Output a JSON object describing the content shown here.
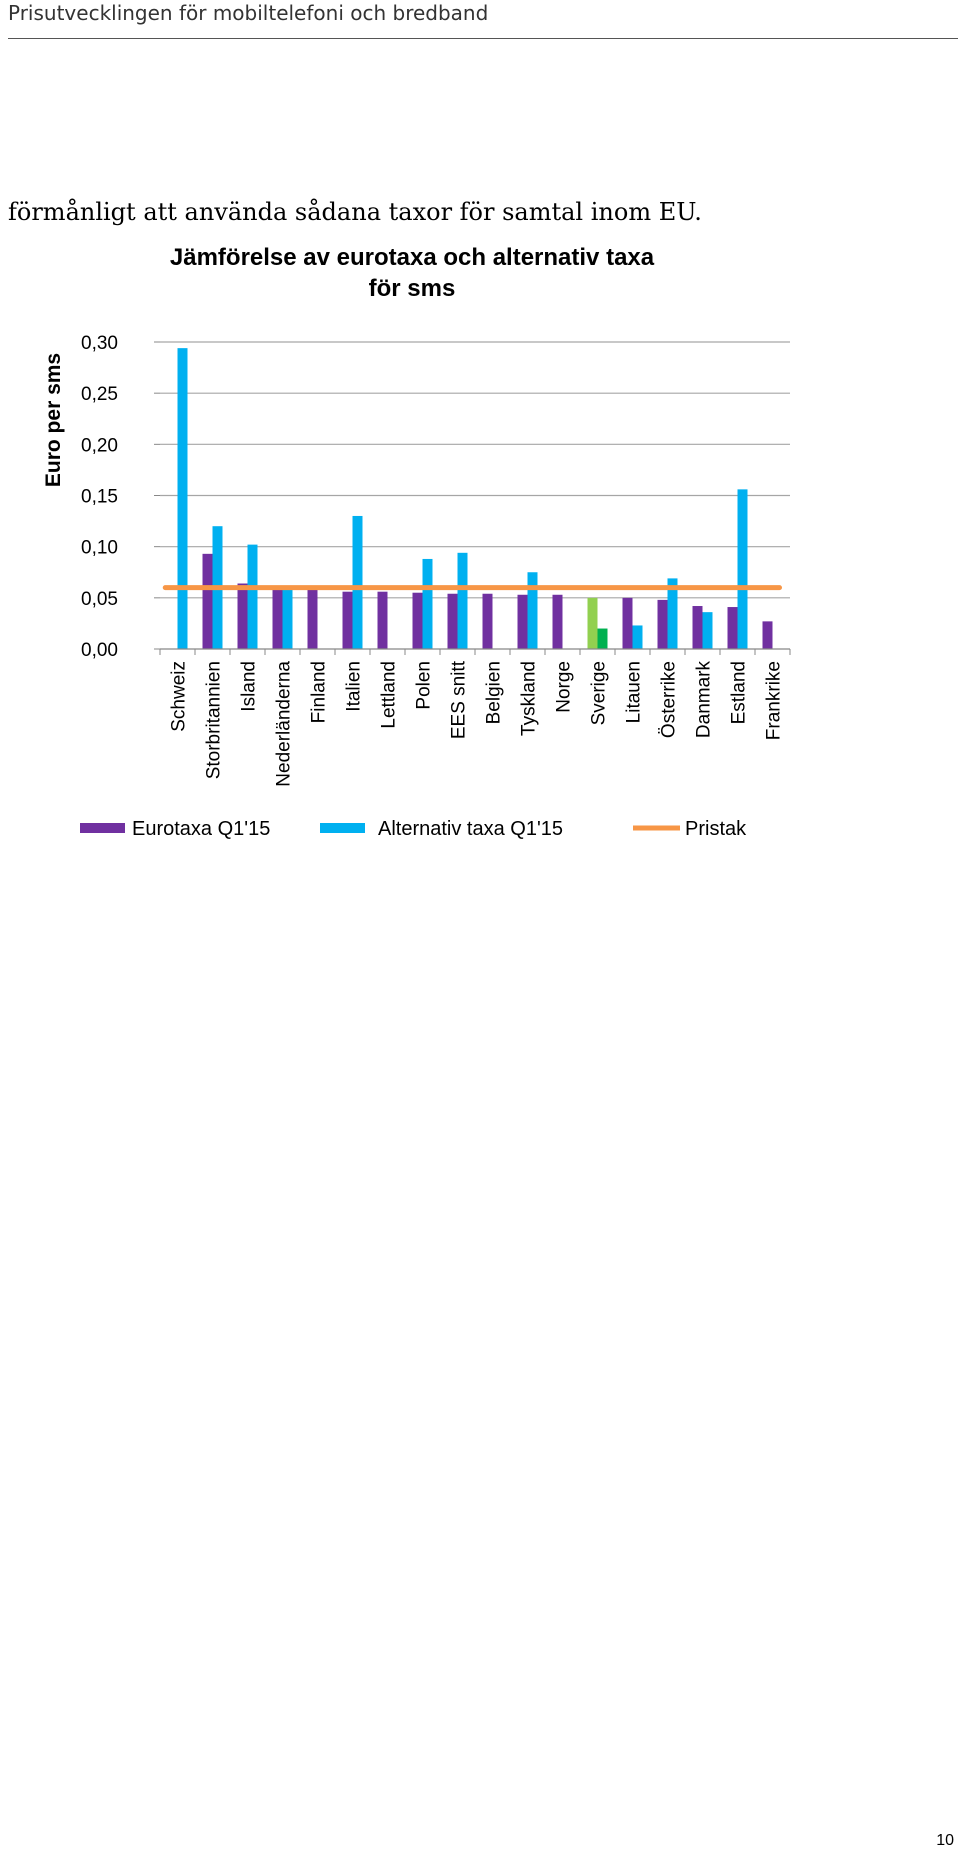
{
  "header": {
    "title": "Prisutvecklingen för mobiltelefoni och bredband"
  },
  "body_text": "förmånligt att använda sådana taxor för samtal inom EU.",
  "page_number": "10",
  "chart_data": {
    "type": "bar",
    "title_lines": [
      "Jämförelse av eurotaxa och alternativ taxa",
      "för sms"
    ],
    "ylabel": "Euro per sms",
    "xlabel": "",
    "ylim": [
      0,
      0.3
    ],
    "yticks": [
      "0,00",
      "0,05",
      "0,10",
      "0,15",
      "0,20",
      "0,25",
      "0,30"
    ],
    "grid": true,
    "legend_position": "bottom",
    "categories": [
      "Schweiz",
      "Storbritannien",
      "Island",
      "Nederländerna",
      "Finland",
      "Italien",
      "Lettland",
      "Polen",
      "EES snitt",
      "Belgien",
      "Tyskland",
      "Norge",
      "Sverige",
      "Litauen",
      "Österrike",
      "Danmark",
      "Estland",
      "Frankrike"
    ],
    "series": [
      {
        "name": "Eurotaxa Q1'15",
        "color": "#7030a0",
        "values": [
          null,
          0.093,
          0.064,
          0.058,
          0.058,
          0.056,
          0.056,
          0.055,
          0.054,
          0.054,
          0.053,
          0.053,
          0.05,
          0.05,
          0.048,
          0.042,
          0.041,
          0.027
        ]
      },
      {
        "name": "Alternativ taxa Q1'15",
        "color": "#00b0f0",
        "values": [
          0.294,
          0.12,
          0.102,
          0.058,
          null,
          0.13,
          null,
          0.088,
          0.094,
          null,
          0.075,
          null,
          0.02,
          0.023,
          0.069,
          0.036,
          0.156,
          null
        ]
      }
    ],
    "highlight_colors": {
      "Sverige": [
        "#92d050",
        "#00b050"
      ]
    },
    "reference_line": {
      "name": "Pristak",
      "value": 0.06,
      "color": "#f79646"
    }
  }
}
